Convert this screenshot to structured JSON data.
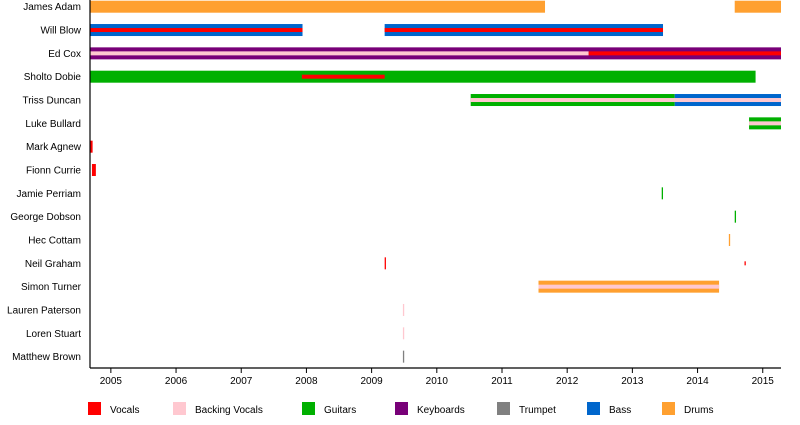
{
  "chart_data": {
    "type": "timeline",
    "title": "",
    "xlabel": "",
    "ylabel": "",
    "xlim": [
      2004.68,
      2015.28
    ],
    "x_ticks": [
      "2005",
      "2006",
      "2007",
      "2008",
      "2009",
      "2010",
      "2011",
      "2012",
      "2013",
      "2014",
      "2015"
    ],
    "grid": false,
    "legend_position": "bottom",
    "colors": {
      "Vocals": "#ff0000",
      "Backing Vocals": "#ffc8d0",
      "Guitars": "#00b000",
      "Keyboards": "#780078",
      "Trumpet": "#808080",
      "Bass": "#0066cc",
      "Drums": "#ffa030"
    },
    "legend": [
      "Vocals",
      "Backing Vocals",
      "Guitars",
      "Keyboards",
      "Trumpet",
      "Bass",
      "Drums"
    ],
    "members": [
      {
        "name": "James Adam",
        "segments": [
          {
            "instrument": "Drums",
            "start": 2004.68,
            "end": 2011.66,
            "layer": "main"
          },
          {
            "instrument": "Drums",
            "start": 2014.57,
            "end": 2015.28,
            "layer": "main"
          }
        ]
      },
      {
        "name": "Will Blow",
        "segments": [
          {
            "instrument": "Bass",
            "start": 2004.68,
            "end": 2007.94,
            "layer": "main"
          },
          {
            "instrument": "Vocals",
            "start": 2004.68,
            "end": 2007.94,
            "layer": "inner"
          },
          {
            "instrument": "Bass",
            "start": 2009.2,
            "end": 2013.47,
            "layer": "main"
          },
          {
            "instrument": "Vocals",
            "start": 2009.2,
            "end": 2013.47,
            "layer": "inner"
          }
        ]
      },
      {
        "name": "Ed Cox",
        "segments": [
          {
            "instrument": "Keyboards",
            "start": 2004.68,
            "end": 2015.28,
            "layer": "main"
          },
          {
            "instrument": "Backing Vocals",
            "start": 2004.68,
            "end": 2012.33,
            "layer": "inner"
          },
          {
            "instrument": "Vocals",
            "start": 2012.33,
            "end": 2015.28,
            "layer": "inner"
          }
        ]
      },
      {
        "name": "Sholto Dobie",
        "segments": [
          {
            "instrument": "Guitars",
            "start": 2004.68,
            "end": 2014.89,
            "layer": "main"
          },
          {
            "instrument": "Vocals",
            "start": 2007.93,
            "end": 2009.2,
            "layer": "inner"
          }
        ]
      },
      {
        "name": "Triss Duncan",
        "segments": [
          {
            "instrument": "Guitars",
            "start": 2010.52,
            "end": 2013.65,
            "layer": "main"
          },
          {
            "instrument": "Bass",
            "start": 2013.65,
            "end": 2015.28,
            "layer": "main"
          },
          {
            "instrument": "Backing Vocals",
            "start": 2010.52,
            "end": 2015.28,
            "layer": "inner"
          }
        ]
      },
      {
        "name": "Luke Bullard",
        "segments": [
          {
            "instrument": "Guitars",
            "start": 2014.79,
            "end": 2015.28,
            "layer": "main"
          },
          {
            "instrument": "Backing Vocals",
            "start": 2014.79,
            "end": 2015.28,
            "layer": "inner"
          }
        ]
      },
      {
        "name": "Mark Agnew",
        "segments": [
          {
            "instrument": "Vocals",
            "start": 2004.68,
            "end": 2004.72,
            "layer": "main"
          }
        ]
      },
      {
        "name": "Fionn Currie",
        "segments": [
          {
            "instrument": "Vocals",
            "start": 2004.71,
            "end": 2004.77,
            "layer": "main"
          }
        ]
      },
      {
        "name": "Jamie Perriam",
        "segments": [
          {
            "instrument": "Guitars",
            "start": 2013.45,
            "end": 2013.46,
            "layer": "main"
          }
        ]
      },
      {
        "name": "George Dobson",
        "segments": [
          {
            "instrument": "Guitars",
            "start": 2014.57,
            "end": 2014.58,
            "layer": "main"
          }
        ]
      },
      {
        "name": "Hec Cottam",
        "segments": [
          {
            "instrument": "Drums",
            "start": 2014.48,
            "end": 2014.49,
            "layer": "main"
          }
        ]
      },
      {
        "name": "Neil Graham",
        "segments": [
          {
            "instrument": "Vocals",
            "start": 2009.2,
            "end": 2009.21,
            "layer": "main"
          },
          {
            "instrument": "Vocals",
            "start": 2014.72,
            "end": 2014.73,
            "layer": "inner"
          }
        ]
      },
      {
        "name": "Simon Turner",
        "segments": [
          {
            "instrument": "Drums",
            "start": 2011.56,
            "end": 2014.33,
            "layer": "main"
          },
          {
            "instrument": "Backing Vocals",
            "start": 2011.56,
            "end": 2014.33,
            "layer": "inner"
          }
        ]
      },
      {
        "name": "Lauren Paterson",
        "segments": [
          {
            "instrument": "Backing Vocals",
            "start": 2009.48,
            "end": 2009.49,
            "layer": "main"
          }
        ]
      },
      {
        "name": "Loren Stuart",
        "segments": [
          {
            "instrument": "Backing Vocals",
            "start": 2009.48,
            "end": 2009.49,
            "layer": "main"
          }
        ]
      },
      {
        "name": "Matthew Brown",
        "segments": [
          {
            "instrument": "Trumpet",
            "start": 2009.48,
            "end": 2009.49,
            "layer": "main"
          }
        ]
      }
    ]
  }
}
